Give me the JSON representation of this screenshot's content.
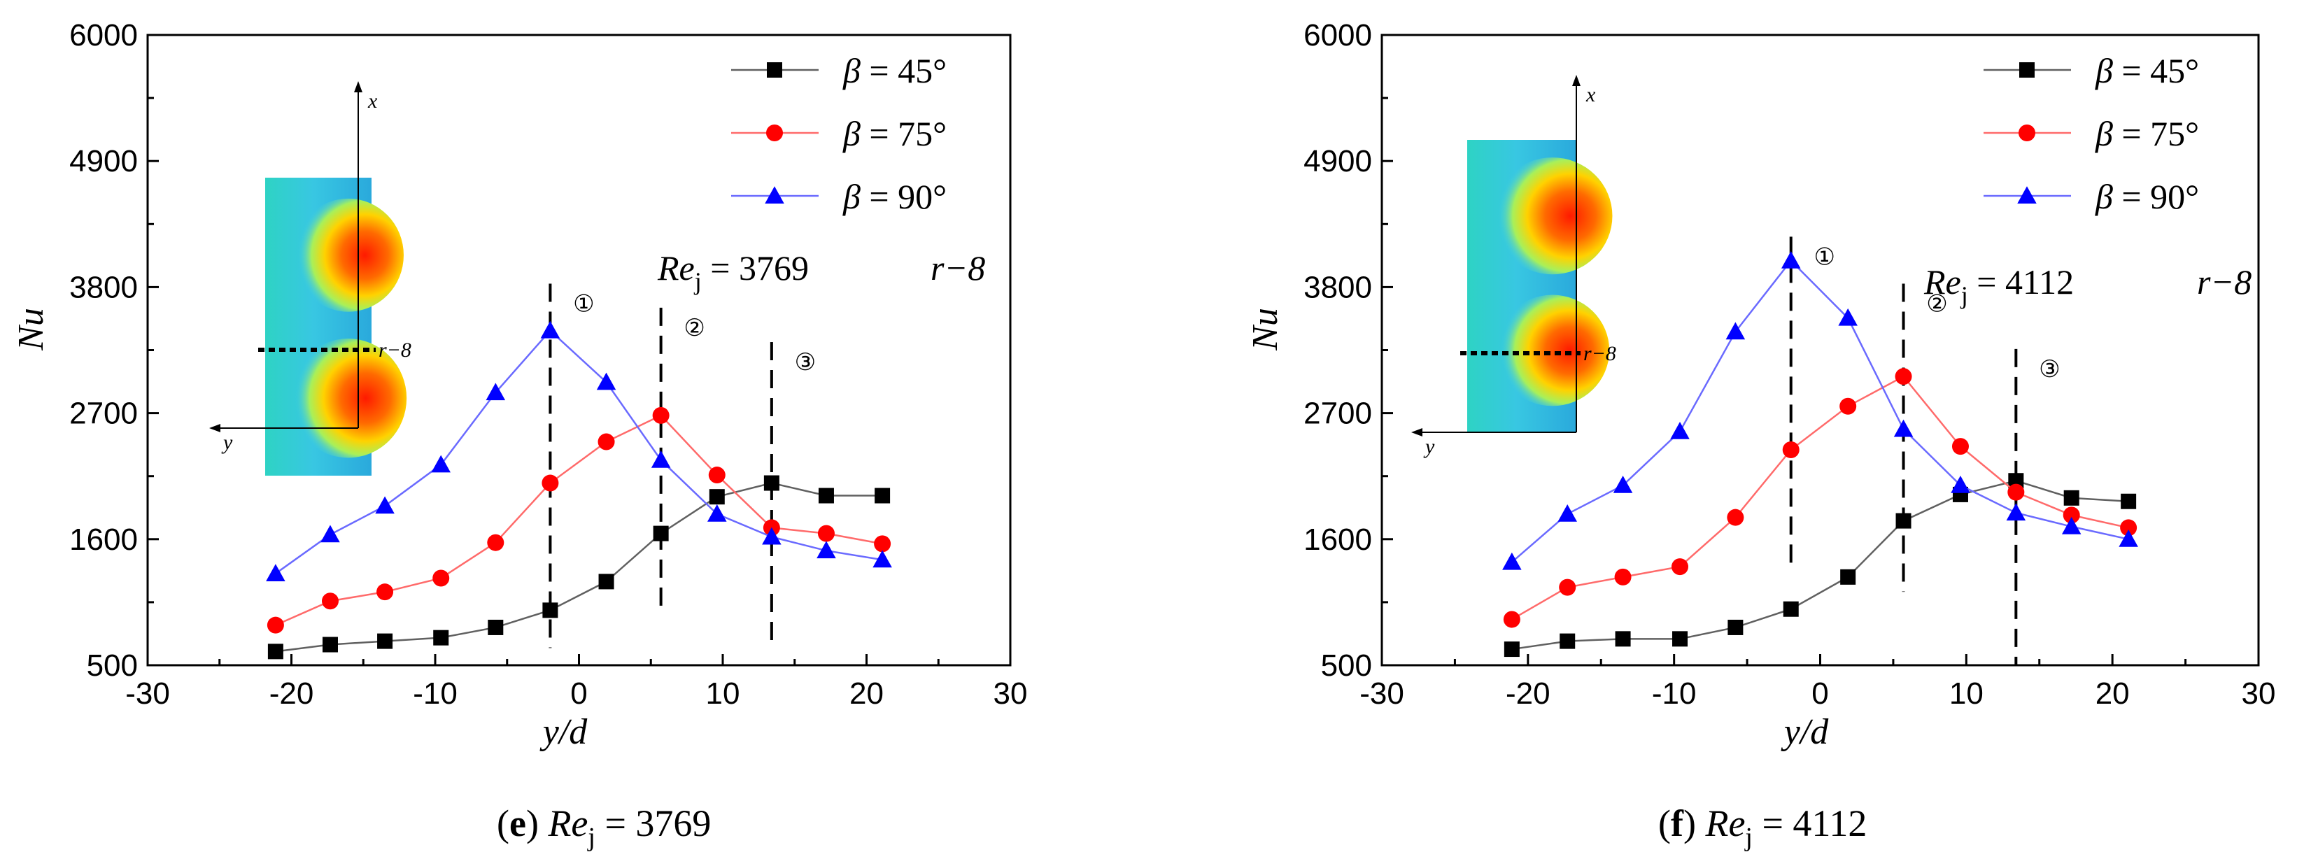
{
  "chart_data": [
    {
      "type": "line",
      "panel": "e",
      "caption": {
        "letter": "e",
        "re_symbol": "Re",
        "re_sub": "j",
        "value_text": "= 3769"
      },
      "xlabel": "y/d",
      "ylabel": "Nu",
      "xlim": [
        -30,
        30
      ],
      "ylim": [
        500,
        6000
      ],
      "xticks": [
        -30,
        -20,
        -10,
        0,
        10,
        20,
        30
      ],
      "xtick_labels": [
        "-30",
        "-20",
        "-10",
        "0",
        "10",
        "20",
        "30"
      ],
      "yticks": [
        500,
        1600,
        2700,
        3800,
        4900,
        6000
      ],
      "ytick_labels": [
        "500",
        "1600",
        "2700",
        "3800",
        "4900",
        "6000"
      ],
      "legend_position": "top-right",
      "series": [
        {
          "name": "β = 45°",
          "symbol": "β",
          "value_label": "= 45°",
          "color": "#000000",
          "line_color": "#606060",
          "marker": "square",
          "x": [
            -21.1,
            -17.3,
            -13.5,
            -9.6,
            -5.8,
            -2.0,
            1.9,
            5.7,
            9.6,
            13.4,
            17.2,
            21.1
          ],
          "y": [
            620,
            680,
            710,
            740,
            830,
            980,
            1230,
            1650,
            1970,
            2090,
            1980,
            1980
          ]
        },
        {
          "name": "β = 75°",
          "symbol": "β",
          "value_label": "= 75°",
          "color": "#ff0000",
          "line_color": "#ff6a6a",
          "marker": "circle",
          "x": [
            -21.1,
            -17.3,
            -13.5,
            -9.6,
            -5.8,
            -2.0,
            1.9,
            5.7,
            9.6,
            13.4,
            17.2,
            21.1
          ],
          "y": [
            850,
            1060,
            1140,
            1260,
            1570,
            2090,
            2450,
            2680,
            2160,
            1700,
            1650,
            1560
          ]
        },
        {
          "name": "β = 90°",
          "symbol": "β",
          "value_label": "= 90°",
          "color": "#0000ff",
          "line_color": "#6a6aff",
          "marker": "triangle",
          "x": [
            -21.1,
            -17.3,
            -13.5,
            -9.6,
            -5.8,
            -2.0,
            1.9,
            5.7,
            9.6,
            13.4,
            17.2,
            21.1
          ],
          "y": [
            1300,
            1640,
            1890,
            2250,
            2880,
            3420,
            2970,
            2290,
            1820,
            1620,
            1500,
            1420
          ]
        }
      ],
      "vlines": [
        {
          "x": -2.0,
          "y_from": 650,
          "y_to": 3830,
          "marker": "①"
        },
        {
          "x": 5.7,
          "y_from": 950,
          "y_to": 3620,
          "marker": "②"
        },
        {
          "x": 13.4,
          "y_from": 670,
          "y_to": 3320,
          "marker": "③"
        }
      ],
      "annotation": {
        "re_symbol": "Re",
        "re_sub": "j",
        "re_value": "= 3769",
        "r_label": "r−8"
      },
      "inset": {
        "x_label": "x",
        "y_label": "y",
        "line_label": "r−8",
        "hot_spots": "bottom-top"
      }
    },
    {
      "type": "line",
      "panel": "f",
      "caption": {
        "letter": "f",
        "re_symbol": "Re",
        "re_sub": "j",
        "value_text": "= 4112"
      },
      "xlabel": "y/d",
      "ylabel": "Nu",
      "xlim": [
        -30,
        30
      ],
      "ylim": [
        500,
        6000
      ],
      "xticks": [
        -30,
        -20,
        -10,
        0,
        10,
        20,
        30
      ],
      "xtick_labels": [
        "-30",
        "-20",
        "-10",
        "0",
        "10",
        "20",
        "30"
      ],
      "yticks": [
        500,
        1600,
        2700,
        3800,
        4900,
        6000
      ],
      "ytick_labels": [
        "500",
        "1600",
        "2700",
        "3800",
        "4900",
        "6000"
      ],
      "legend_position": "top-right",
      "series": [
        {
          "name": "β = 45°",
          "symbol": "β",
          "value_label": "= 45°",
          "color": "#000000",
          "line_color": "#606060",
          "marker": "square",
          "x": [
            -21.1,
            -17.3,
            -13.5,
            -9.6,
            -5.8,
            -2.0,
            1.9,
            5.7,
            9.6,
            13.4,
            17.2,
            21.1
          ],
          "y": [
            640,
            710,
            730,
            730,
            830,
            990,
            1270,
            1760,
            1990,
            2110,
            1960,
            1930
          ]
        },
        {
          "name": "β = 75°",
          "symbol": "β",
          "value_label": "= 75°",
          "color": "#ff0000",
          "line_color": "#ff6a6a",
          "marker": "circle",
          "x": [
            -21.1,
            -17.3,
            -13.5,
            -9.6,
            -5.8,
            -2.0,
            1.9,
            5.7,
            9.6,
            13.4,
            17.2,
            21.1
          ],
          "y": [
            900,
            1180,
            1270,
            1360,
            1790,
            2380,
            2760,
            3020,
            2410,
            2010,
            1810,
            1700
          ]
        },
        {
          "name": "β = 90°",
          "symbol": "β",
          "value_label": "= 90°",
          "color": "#0000ff",
          "line_color": "#6a6aff",
          "marker": "triangle",
          "x": [
            -21.1,
            -17.3,
            -13.5,
            -9.6,
            -5.8,
            -2.0,
            1.9,
            5.7,
            9.6,
            13.4,
            17.2,
            21.1
          ],
          "y": [
            1400,
            1820,
            2070,
            2540,
            3410,
            4030,
            3530,
            2560,
            2070,
            1830,
            1710,
            1600
          ]
        }
      ],
      "vlines": [
        {
          "x": -2.0,
          "y_from": 1380,
          "y_to": 4240,
          "marker": "①"
        },
        {
          "x": 5.7,
          "y_from": 1140,
          "y_to": 3830,
          "marker": "②"
        },
        {
          "x": 13.4,
          "y_from": 500,
          "y_to": 3260,
          "marker": "③"
        }
      ],
      "annotation": {
        "re_symbol": "Re",
        "re_sub": "j",
        "re_value": "= 4112",
        "r_label": "r−8"
      },
      "inset": {
        "x_label": "x",
        "y_label": "y",
        "line_label": "r−8",
        "hot_spots": "top-bottom"
      }
    }
  ]
}
